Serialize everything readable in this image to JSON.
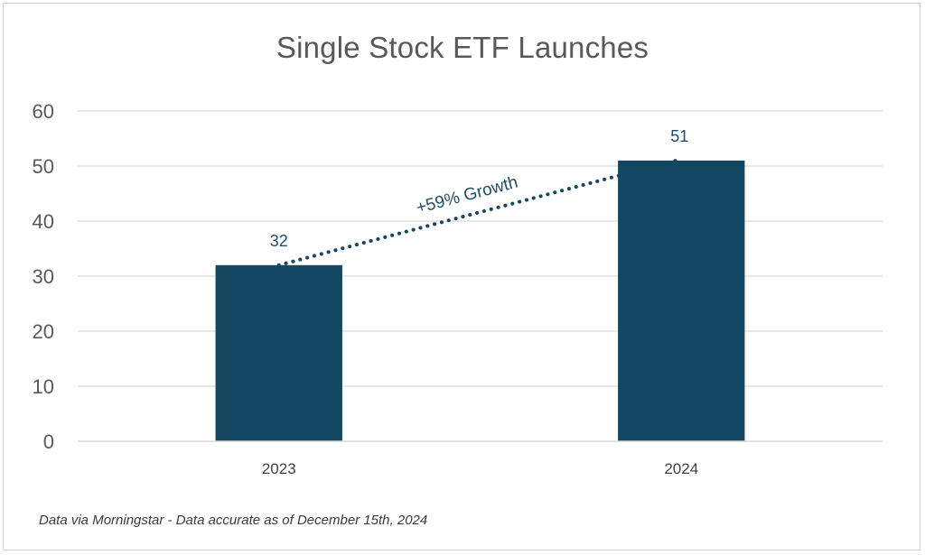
{
  "chart_data": {
    "type": "bar",
    "title": "Single Stock ETF Launches",
    "categories": [
      "2023",
      "2024"
    ],
    "values": [
      32,
      51
    ],
    "xlabel": "",
    "ylabel": "",
    "ylim": [
      0,
      60
    ],
    "yticks": [
      0,
      10,
      20,
      30,
      40,
      50,
      60
    ],
    "grid": true,
    "legend": "none",
    "bar_color": "#144862",
    "trendline": {
      "style": "dotted",
      "from_value": 32,
      "to_value": 51,
      "label": "+59% Growth",
      "color": "#144862"
    }
  },
  "footnote": "Data via Morningstar - Data accurate as of December 15th, 2024"
}
